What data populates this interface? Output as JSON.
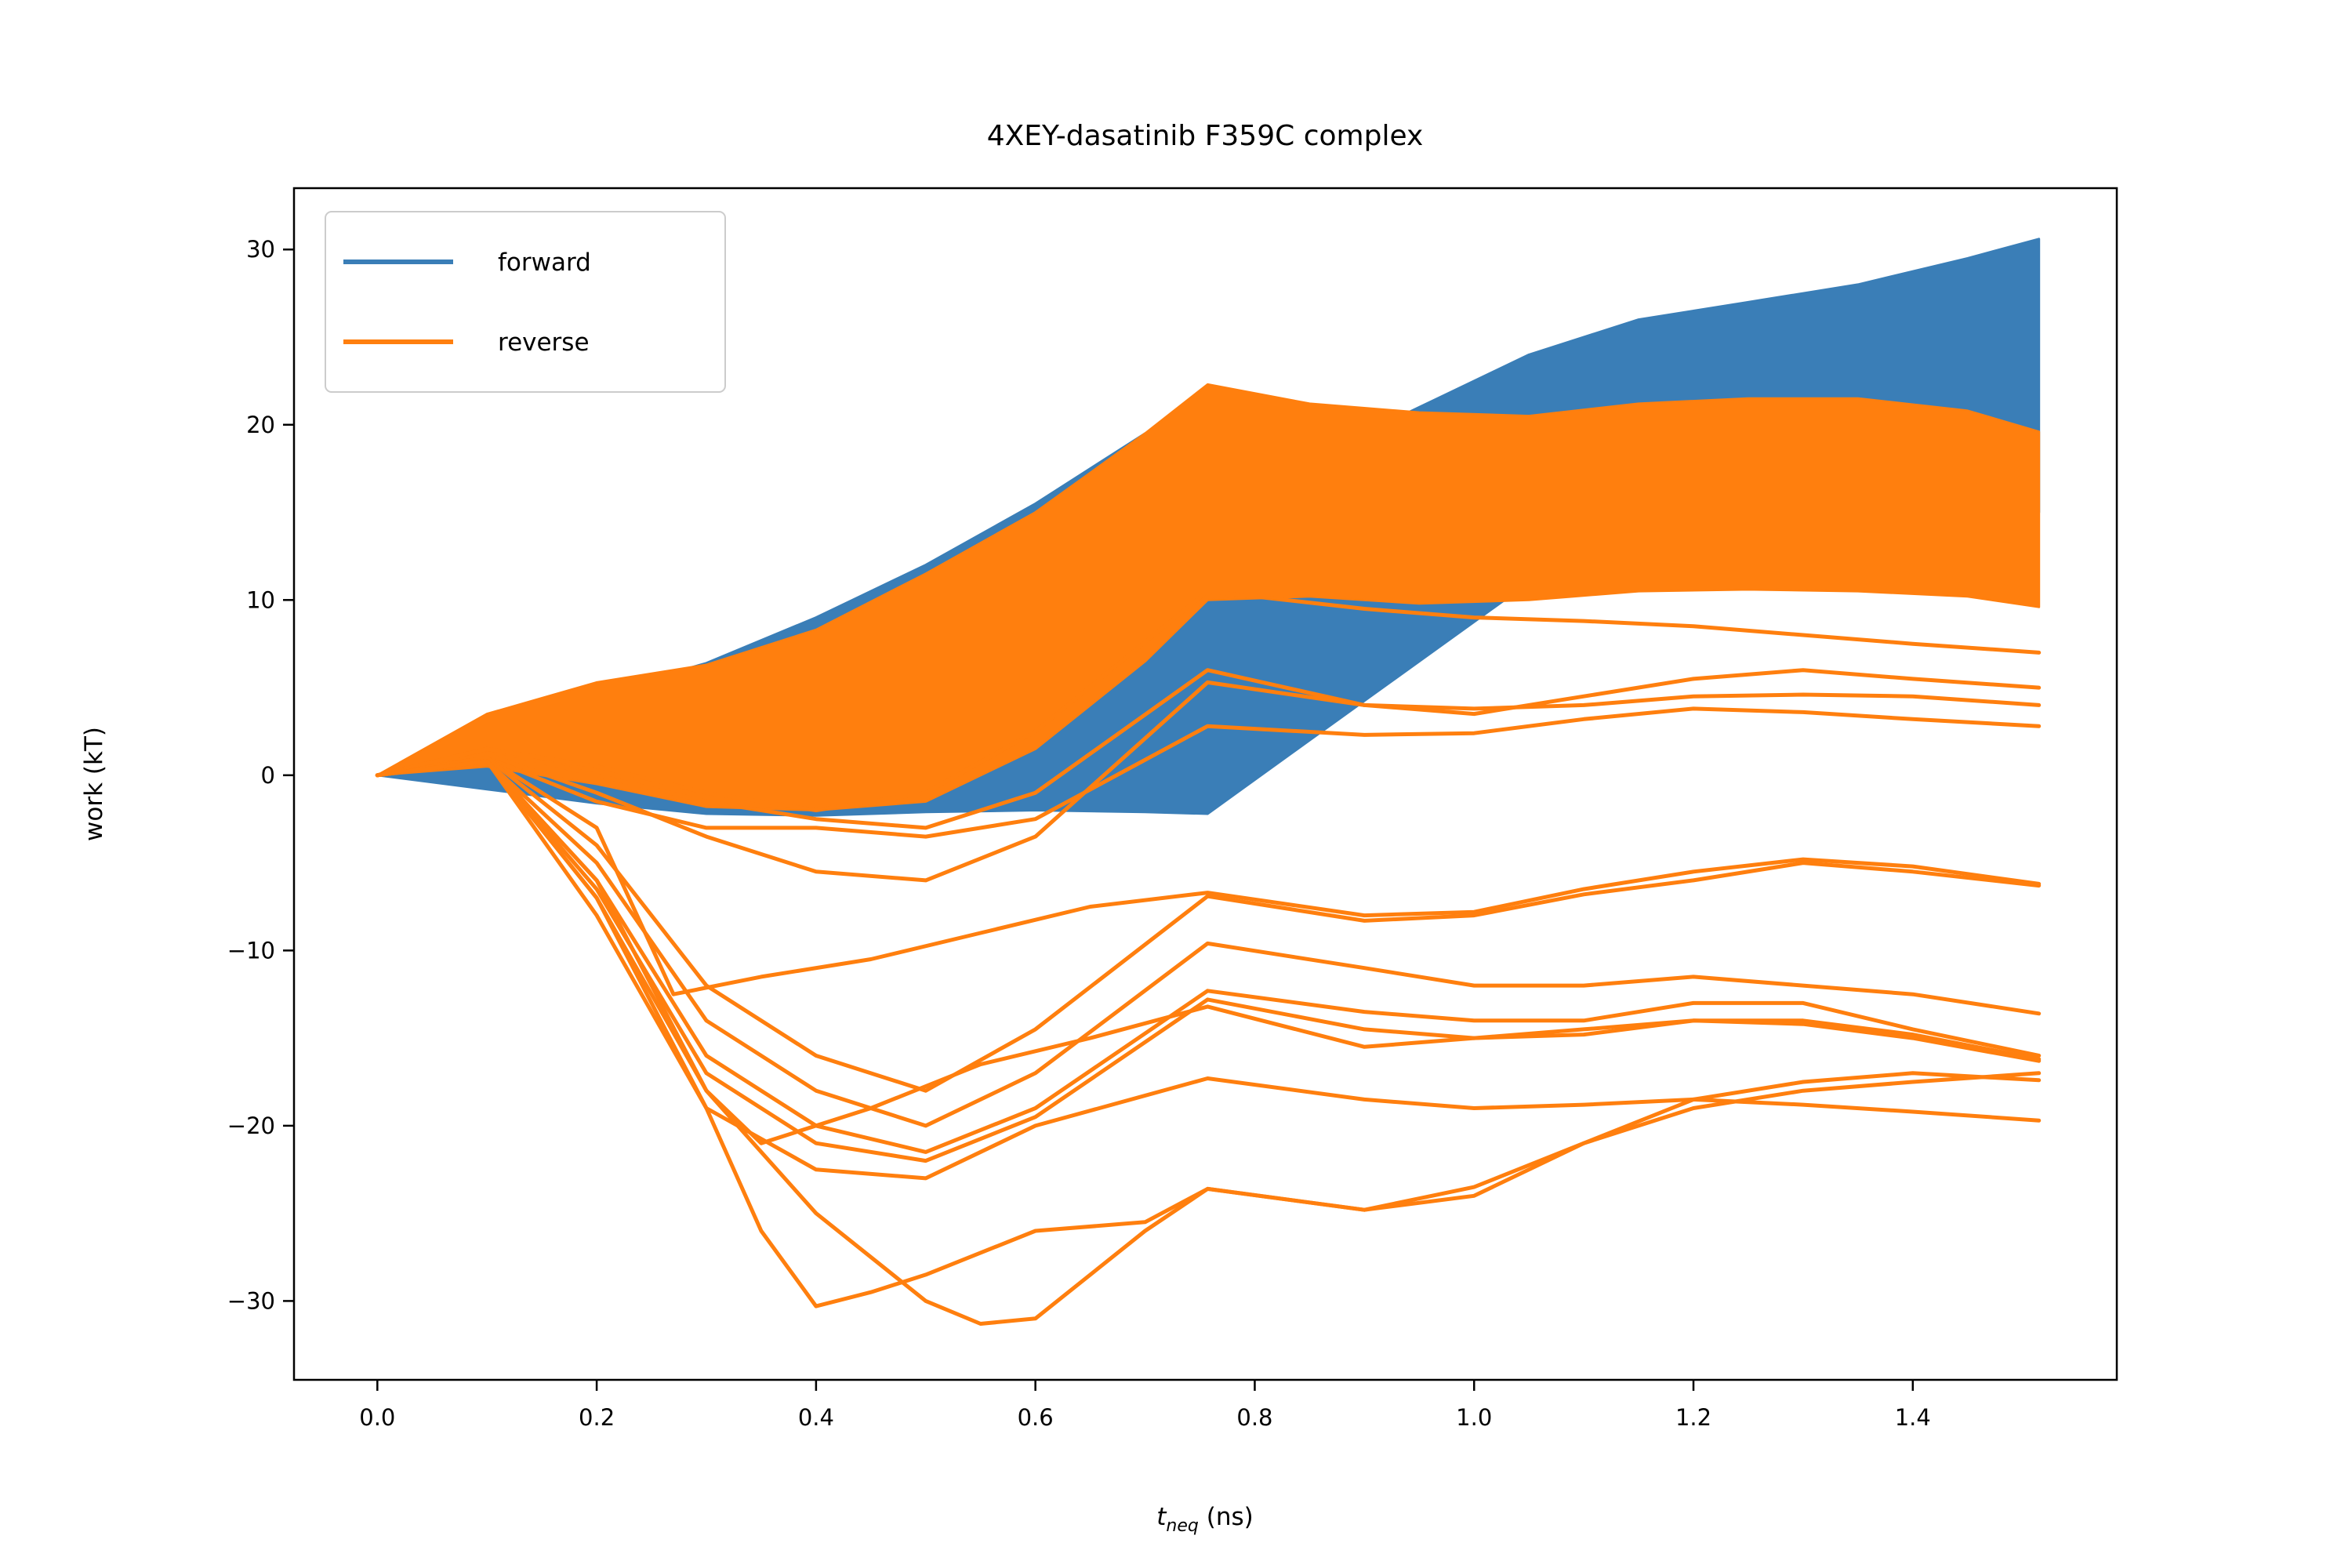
{
  "chart_data": {
    "type": "line",
    "title": "4XEY-dasatinib F359C complex",
    "xlabel": {
      "var": "t",
      "sub": "neq",
      "unit": " (ns)"
    },
    "ylabel": "work (kT)",
    "xlim": [
      -0.076,
      1.586
    ],
    "ylim": [
      -34.5,
      33.5
    ],
    "xticks": [
      0.0,
      0.2,
      0.4,
      0.6,
      0.8,
      1.0,
      1.2,
      1.4
    ],
    "xtick_labels": [
      "0.0",
      "0.2",
      "0.4",
      "0.6",
      "0.8",
      "1.0",
      "1.2",
      "1.4"
    ],
    "yticks": [
      -30,
      -20,
      -10,
      0,
      10,
      20,
      30
    ],
    "ytick_labels": [
      "−30",
      "−20",
      "−10",
      "0",
      "10",
      "20",
      "30"
    ],
    "grid": false,
    "legend": {
      "placement": "top-left",
      "entries": [
        "forward",
        "reverse"
      ]
    },
    "colors": {
      "forward": "#3a7eb7",
      "reverse": "#ff7f0e"
    },
    "band_x": [
      0.0,
      0.1,
      0.2,
      0.3,
      0.4,
      0.5,
      0.6,
      0.7,
      0.757,
      0.85,
      0.95,
      1.05,
      1.15,
      1.25,
      1.35,
      1.45,
      1.515
    ],
    "series": [
      {
        "name": "forward",
        "render": "band",
        "lower": [
          0,
          -0.8,
          -1.6,
          -2.2,
          -2.3,
          -2.1,
          -2.0,
          -2.1,
          -2.2,
          2.0,
          6.5,
          11.0,
          14.0,
          15.5,
          16.0,
          15.5,
          15.0
        ],
        "upper": [
          0,
          2.5,
          4.6,
          6.4,
          9.0,
          12.0,
          15.5,
          19.5,
          21.5,
          18.0,
          21.0,
          24.0,
          26.0,
          27.0,
          28.0,
          29.5,
          30.6
        ]
      },
      {
        "name": "reverse",
        "render": "band",
        "lower": [
          0,
          0.5,
          -0.5,
          -1.8,
          -2.0,
          -1.5,
          1.5,
          6.5,
          10.0,
          10.2,
          9.8,
          10.0,
          10.5,
          10.6,
          10.5,
          10.2,
          9.6
        ],
        "upper": [
          0,
          3.5,
          5.3,
          6.3,
          8.3,
          11.5,
          15.0,
          19.5,
          22.3,
          21.2,
          20.7,
          20.5,
          21.2,
          21.5,
          21.5,
          20.8,
          19.6
        ]
      }
    ],
    "reverse_lines": [
      {
        "x": [
          0,
          0.1,
          0.2,
          0.3,
          0.4,
          0.5,
          0.6,
          0.757,
          0.9,
          1.0,
          1.1,
          1.2,
          1.3,
          1.4,
          1.515
        ],
        "y": [
          0,
          1.5,
          0.0,
          -1.5,
          -2.5,
          -3.0,
          -1.0,
          6.0,
          4.0,
          3.5,
          4.5,
          5.5,
          6.0,
          5.5,
          5.0
        ]
      },
      {
        "x": [
          0,
          0.1,
          0.2,
          0.3,
          0.4,
          0.5,
          0.6,
          0.757,
          0.9,
          1.0,
          1.1,
          1.2,
          1.3,
          1.4,
          1.515
        ],
        "y": [
          0,
          1.2,
          -1.0,
          -3.5,
          -5.5,
          -6.0,
          -3.5,
          5.3,
          4.0,
          3.8,
          4.0,
          4.5,
          4.6,
          4.5,
          4.0
        ]
      },
      {
        "x": [
          0,
          0.1,
          0.2,
          0.3,
          0.4,
          0.5,
          0.6,
          0.757,
          0.9,
          1.0,
          1.1,
          1.2,
          1.3,
          1.4,
          1.515
        ],
        "y": [
          0,
          1.0,
          -1.5,
          -3.0,
          -3.0,
          -3.5,
          -2.5,
          2.8,
          2.3,
          2.4,
          3.2,
          3.8,
          3.6,
          3.2,
          2.8
        ]
      },
      {
        "x": [
          0,
          0.1,
          0.2,
          0.3,
          0.4,
          0.5,
          0.6,
          0.757,
          0.9,
          1.0,
          1.1,
          1.2,
          1.3,
          1.4,
          1.515
        ],
        "y": [
          0,
          1.5,
          0.5,
          -1.0,
          -2.0,
          -1.0,
          2.5,
          10.5,
          9.5,
          9.0,
          8.8,
          8.5,
          8.0,
          7.5,
          7.0
        ]
      },
      {
        "x": [
          0,
          0.1,
          0.2,
          0.27,
          0.35,
          0.45,
          0.55,
          0.65,
          0.757,
          0.9,
          1.0,
          1.1,
          1.2,
          1.3,
          1.4,
          1.515
        ],
        "y": [
          0,
          1.0,
          -3.0,
          -12.5,
          -11.5,
          -10.5,
          -9.0,
          -7.5,
          -6.7,
          -8.0,
          -7.8,
          -6.5,
          -5.5,
          -4.8,
          -5.2,
          -6.2
        ]
      },
      {
        "x": [
          0,
          0.1,
          0.2,
          0.3,
          0.4,
          0.5,
          0.6,
          0.757,
          0.9,
          1.0,
          1.1,
          1.2,
          1.3,
          1.4,
          1.515
        ],
        "y": [
          0,
          1.0,
          -4.0,
          -12.0,
          -16.0,
          -18.0,
          -14.5,
          -6.9,
          -8.3,
          -8.0,
          -6.8,
          -6.0,
          -5.0,
          -5.5,
          -6.3
        ]
      },
      {
        "x": [
          0,
          0.1,
          0.2,
          0.3,
          0.4,
          0.5,
          0.6,
          0.757,
          0.9,
          1.0,
          1.1,
          1.2,
          1.3,
          1.4,
          1.515
        ],
        "y": [
          0,
          0.8,
          -5.0,
          -14.0,
          -18.0,
          -20.0,
          -17.0,
          -9.6,
          -11.0,
          -12.0,
          -12.0,
          -11.5,
          -12.0,
          -12.5,
          -13.6
        ]
      },
      {
        "x": [
          0,
          0.1,
          0.2,
          0.3,
          0.4,
          0.5,
          0.6,
          0.757,
          0.9,
          1.0,
          1.1,
          1.2,
          1.3,
          1.4,
          1.515
        ],
        "y": [
          0,
          0.8,
          -6.0,
          -16.0,
          -20.0,
          -21.5,
          -19.0,
          -12.3,
          -13.5,
          -14.0,
          -14.0,
          -13.0,
          -13.0,
          -14.5,
          -16.0
        ]
      },
      {
        "x": [
          0,
          0.1,
          0.2,
          0.3,
          0.4,
          0.5,
          0.6,
          0.757,
          0.9,
          1.0,
          1.1,
          1.2,
          1.3,
          1.4,
          1.515
        ],
        "y": [
          0,
          0.8,
          -6.5,
          -17.0,
          -21.0,
          -22.0,
          -19.5,
          -12.8,
          -14.5,
          -15.0,
          -14.8,
          -14.0,
          -14.0,
          -14.8,
          -16.2
        ]
      },
      {
        "x": [
          0,
          0.1,
          0.2,
          0.3,
          0.35,
          0.45,
          0.55,
          0.65,
          0.757,
          0.9,
          1.0,
          1.1,
          1.2,
          1.3,
          1.4,
          1.515
        ],
        "y": [
          0,
          0.8,
          -7.0,
          -18.0,
          -21.0,
          -19.0,
          -16.5,
          -15.0,
          -13.2,
          -15.5,
          -15.0,
          -14.5,
          -14.0,
          -14.2,
          -15.0,
          -16.3
        ]
      },
      {
        "x": [
          0,
          0.1,
          0.2,
          0.3,
          0.4,
          0.5,
          0.6,
          0.757,
          0.9,
          1.0,
          1.1,
          1.2,
          1.3,
          1.4,
          1.515
        ],
        "y": [
          0,
          0.8,
          -8.0,
          -19.0,
          -22.5,
          -23.0,
          -20.0,
          -17.3,
          -18.5,
          -19.0,
          -18.8,
          -18.5,
          -18.8,
          -19.2,
          -19.7
        ]
      },
      {
        "x": [
          0,
          0.1,
          0.2,
          0.3,
          0.35,
          0.4,
          0.45,
          0.5,
          0.6,
          0.7,
          0.757,
          0.9,
          1.0,
          1.1,
          1.2,
          1.3,
          1.4,
          1.515
        ],
        "y": [
          0,
          0.8,
          -7.0,
          -19.0,
          -26.0,
          -30.3,
          -29.5,
          -28.5,
          -26.0,
          -25.5,
          -23.6,
          -24.8,
          -23.5,
          -21.0,
          -18.5,
          -17.5,
          -17.0,
          -17.4
        ]
      },
      {
        "x": [
          0,
          0.1,
          0.2,
          0.3,
          0.4,
          0.5,
          0.55,
          0.6,
          0.7,
          0.757,
          0.9,
          1.0,
          1.1,
          1.2,
          1.3,
          1.4,
          1.515
        ],
        "y": [
          0,
          0.8,
          -6.0,
          -18.0,
          -25.0,
          -30.0,
          -31.3,
          -31.0,
          -26.0,
          -23.6,
          -24.8,
          -24.0,
          -21.0,
          -19.0,
          -18.0,
          -17.5,
          -17.0
        ]
      }
    ]
  }
}
